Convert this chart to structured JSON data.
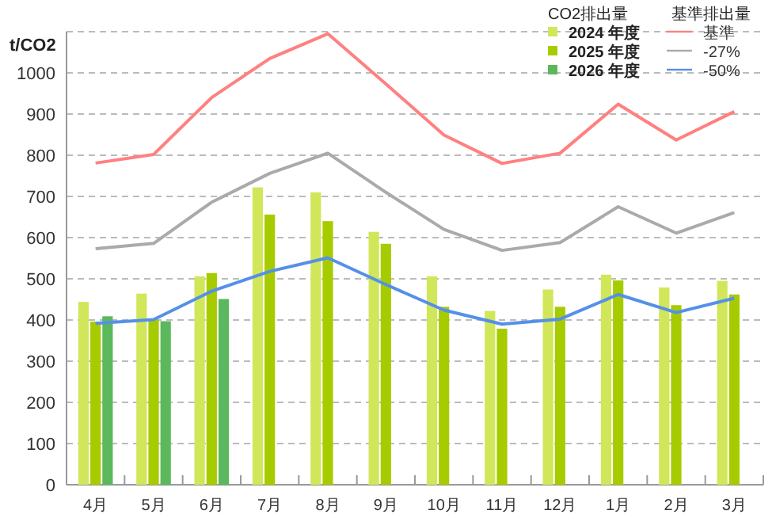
{
  "chart_data": {
    "type": "bar",
    "ylabel": "t/CO2",
    "legend_title": "CO2排出量",
    "annotations": [
      "基準排出量"
    ],
    "categories": [
      "4月",
      "5月",
      "6月",
      "7月",
      "8月",
      "9月",
      "10月",
      "11月",
      "12月",
      "1月",
      "2月",
      "3月"
    ],
    "ylim": [
      0,
      1100
    ],
    "yticks": [
      0,
      100,
      200,
      300,
      400,
      500,
      600,
      700,
      800,
      900,
      1000,
      {
        "value": 1100,
        "label": null
      }
    ],
    "grid": "y",
    "legend": "top right",
    "series": [
      {
        "name": "2024 年度",
        "color": "#d2e65a",
        "values": [
          444,
          464,
          506,
          722,
          710,
          614,
          506,
          422,
          474,
          510,
          479,
          495
        ]
      },
      {
        "name": "2025 年度",
        "color": "#a6cc00",
        "values": [
          396,
          400,
          514,
          656,
          640,
          585,
          432,
          379,
          432,
          496,
          436,
          462
        ]
      },
      {
        "name": "2026 年度",
        "color": "#5cb85c",
        "values": [
          409,
          397,
          451,
          null,
          null,
          null,
          null,
          null,
          null,
          null,
          null,
          null
        ]
      },
      {
        "name": "基準",
        "type": "line",
        "color": "#ff8080",
        "values": [
          781,
          802,
          940,
          1035,
          1095,
          973,
          849,
          780,
          805,
          924,
          837,
          906
        ]
      },
      {
        "name": "-27%",
        "type": "line",
        "color": "#aaaaaa",
        "values": [
          573,
          586,
          686,
          756,
          805,
          710,
          620,
          569,
          588,
          675,
          611,
          661
        ]
      },
      {
        "name": "-50%",
        "type": "line",
        "color": "#5590e8",
        "values": [
          392,
          401,
          470,
          518,
          551,
          486,
          424,
          390,
          402,
          462,
          418,
          453
        ]
      }
    ]
  }
}
